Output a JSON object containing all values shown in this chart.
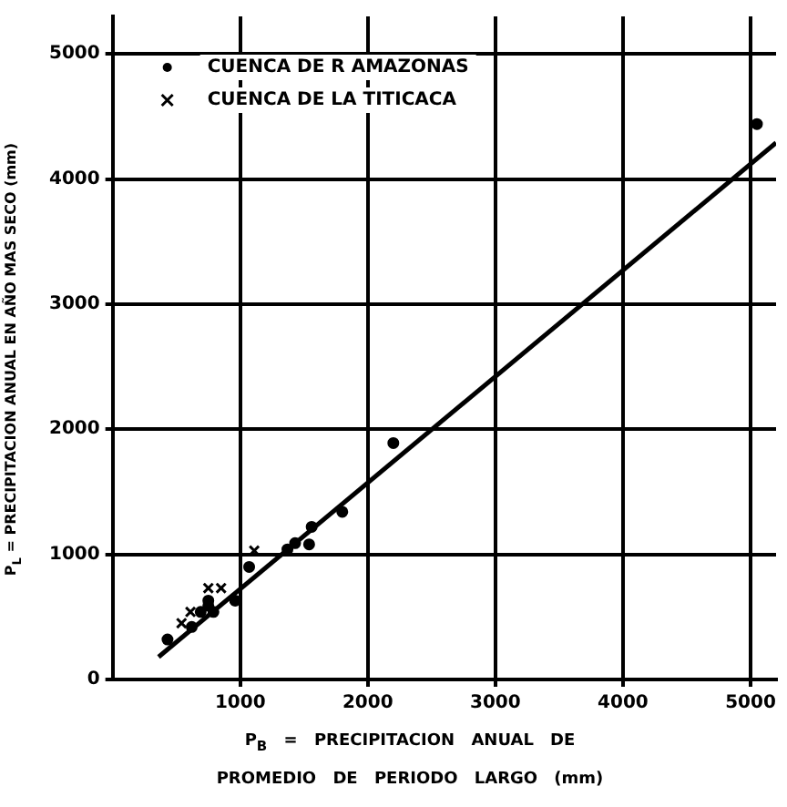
{
  "chart_data": {
    "type": "scatter",
    "xlabel": "P$_{B}$ = PRECIPITACION ANUAL DE PROMEDIO DE PERIODO LARGO (mm)",
    "ylabel": "P$_{L}$ = PRECIPITACION ANUAL EN AÑO MAS SECO (mm)",
    "xlim": [
      0,
      5200
    ],
    "ylim": [
      0,
      5300
    ],
    "xticks": [
      1000,
      2000,
      3000,
      4000,
      5000
    ],
    "yticks": [
      0,
      1000,
      2000,
      3000,
      4000,
      5000
    ],
    "grid": true,
    "legend": "top left",
    "series": [
      {
        "name": "CUENCA DE R AMAZONAS",
        "marker": "circle",
        "color": "#000000",
        "x": [
          5050,
          2200,
          1800,
          1560,
          1540,
          1430,
          1370,
          1070,
          960,
          750,
          750,
          790,
          690,
          620,
          430
        ],
        "values": [
          4440,
          1890,
          1340,
          1220,
          1080,
          1090,
          1040,
          900,
          630,
          630,
          590,
          540,
          540,
          420,
          320
        ]
      },
      {
        "name": "CUENCA DE LA TITICACA",
        "marker": "cross",
        "color": "#000000",
        "x": [
          1110,
          850,
          750,
          610,
          540
        ],
        "values": [
          1030,
          730,
          730,
          540,
          450
        ]
      },
      {
        "type": "line",
        "marker": "none",
        "line_style": "solid",
        "color": "#000000",
        "x": [
          360,
          5200
        ],
        "values": [
          180,
          4290
        ]
      }
    ]
  }
}
